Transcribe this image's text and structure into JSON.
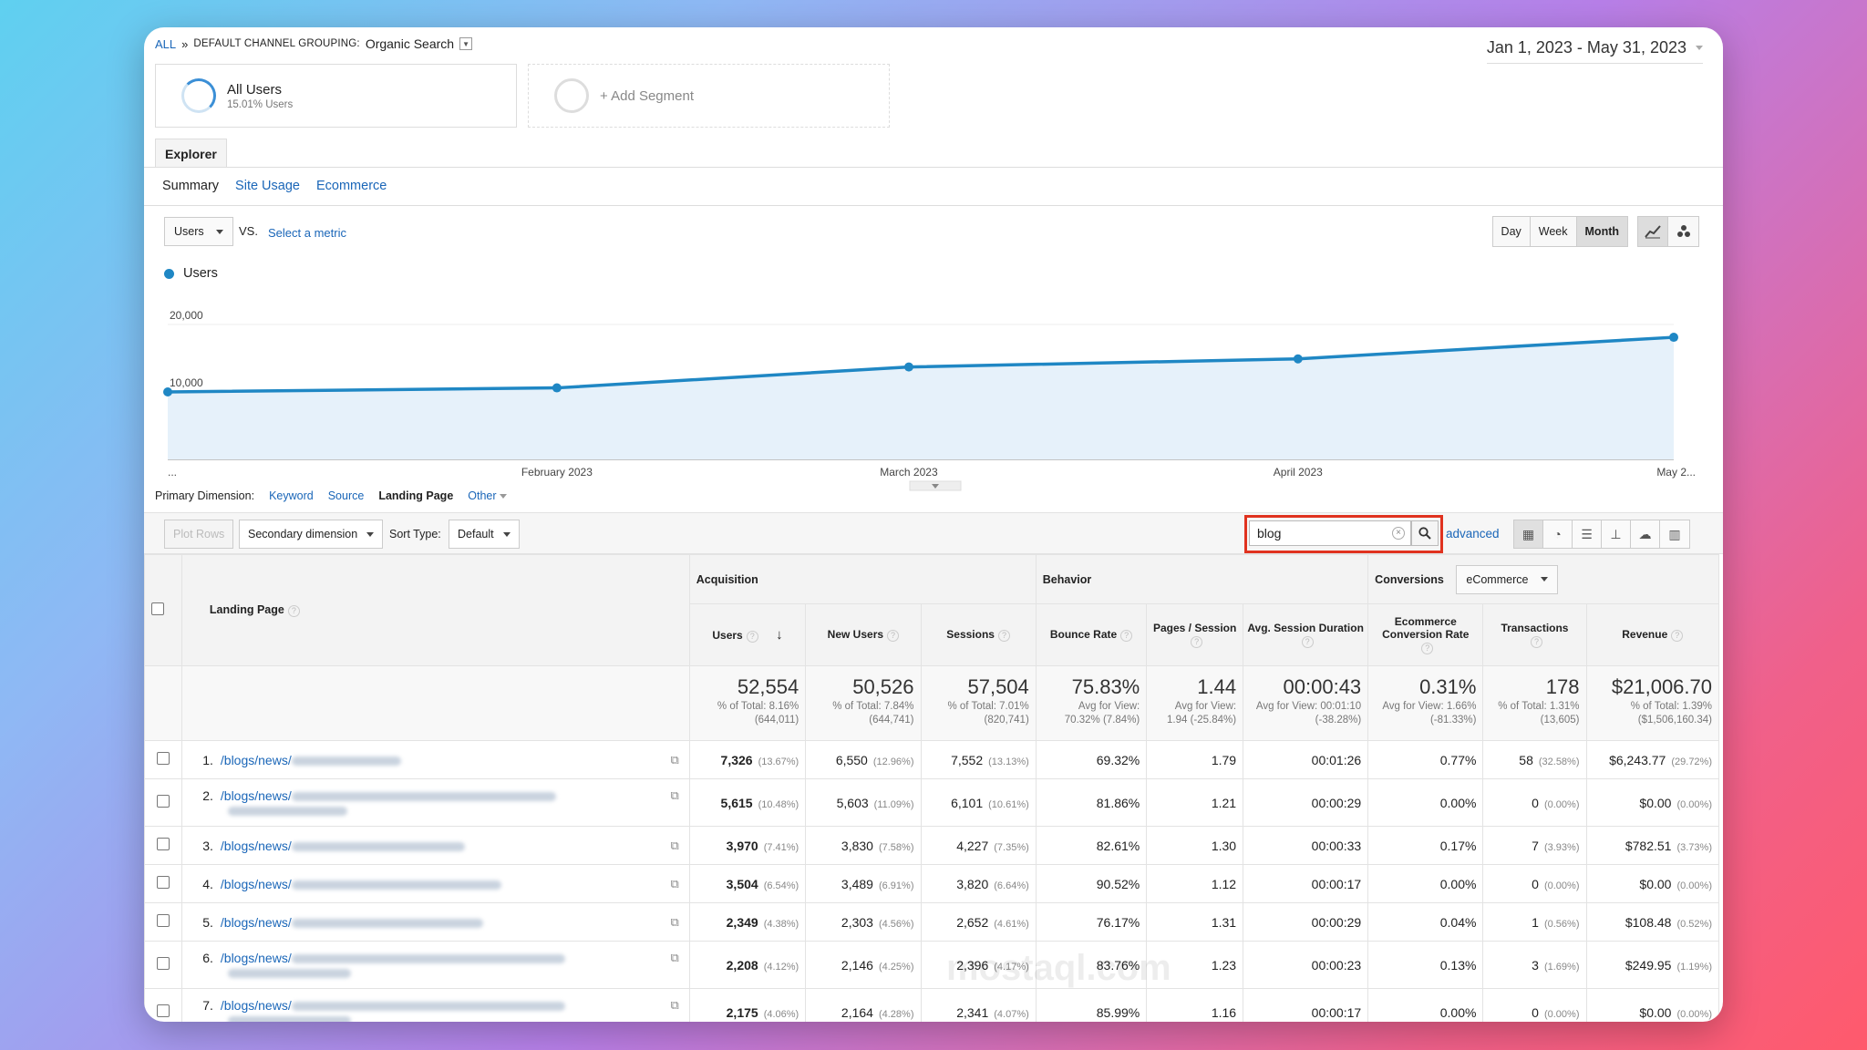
{
  "breadcrumb": {
    "all": "ALL",
    "sep": "»",
    "grouping_label": "DEFAULT CHANNEL GROUPING:",
    "grouping_value": "Organic Search"
  },
  "date_range": "Jan 1, 2023 - May 31, 2023",
  "segments": [
    {
      "name": "All Users",
      "sub": "15.01% Users"
    },
    {
      "name": "+ Add Segment"
    }
  ],
  "tabs": {
    "explorer": "Explorer",
    "sub": [
      "Summary",
      "Site Usage",
      "Ecommerce"
    ]
  },
  "metric": {
    "selected": "Users",
    "vs": "VS.",
    "select_metric": "Select a metric"
  },
  "period": [
    "Day",
    "Week",
    "Month"
  ],
  "chart_data": {
    "type": "line",
    "series": [
      {
        "name": "Users",
        "values": [
          10000,
          10600,
          13700,
          14900,
          18100
        ]
      }
    ],
    "x": [
      "...",
      "February 2023",
      "March 2023",
      "April 2023",
      "May 2..."
    ],
    "ylim": [
      0,
      20000
    ],
    "yticks": [
      "20,000",
      "10,000"
    ],
    "color": "#1f87c4"
  },
  "dimensions": {
    "label": "Primary Dimension:",
    "items": [
      "Keyword",
      "Source",
      "Landing Page",
      "Other"
    ],
    "current": "Landing Page"
  },
  "toolbar": {
    "plot_rows": "Plot Rows",
    "secondary": "Secondary dimension",
    "sort_label": "Sort Type:",
    "sort_value": "Default",
    "search_value": "blog",
    "advanced": "advanced"
  },
  "table": {
    "groups": {
      "acquisition": "Acquisition",
      "behavior": "Behavior",
      "conversions": "Conversions",
      "conversions_sel": "eCommerce"
    },
    "columns": [
      "Landing Page",
      "Users",
      "New Users",
      "Sessions",
      "Bounce Rate",
      "Pages / Session",
      "Avg. Session Duration",
      "Ecommerce Conversion Rate",
      "Transactions",
      "Revenue"
    ],
    "totals": [
      {
        "big": "52,554",
        "l1": "% of Total: 8.16%",
        "l2": "(644,011)"
      },
      {
        "big": "50,526",
        "l1": "% of Total: 7.84%",
        "l2": "(644,741)"
      },
      {
        "big": "57,504",
        "l1": "% of Total: 7.01%",
        "l2": "(820,741)"
      },
      {
        "big": "75.83%",
        "l1": "Avg for View:",
        "l2": "70.32% (7.84%)"
      },
      {
        "big": "1.44",
        "l1": "Avg for View:",
        "l2": "1.94 (-25.84%)"
      },
      {
        "big": "00:00:43",
        "l1": "Avg for View: 00:01:10",
        "l2": "(-38.28%)"
      },
      {
        "big": "0.31%",
        "l1": "Avg for View: 1.66%",
        "l2": "(-81.33%)"
      },
      {
        "big": "178",
        "l1": "% of Total: 1.31%",
        "l2": "(13,605)"
      },
      {
        "big": "$21,006.70",
        "l1": "% of Total: 1.39%",
        "l2": "($1,506,160.34)"
      }
    ],
    "rows": [
      {
        "n": "1.",
        "path": "/blogs/news/",
        "users": "7,326",
        "users_pct": "(13.67%)",
        "new": "6,550",
        "new_pct": "(12.96%)",
        "sessions": "7,552",
        "sessions_pct": "(13.13%)",
        "bounce": "69.32%",
        "pps": "1.79",
        "dur": "00:01:26",
        "ecr": "0.77%",
        "tx": "58",
        "tx_pct": "(32.58%)",
        "rev": "$6,243.77",
        "rev_pct": "(29.72%)"
      },
      {
        "n": "2.",
        "path": "/blogs/news/",
        "users": "5,615",
        "users_pct": "(10.48%)",
        "new": "5,603",
        "new_pct": "(11.09%)",
        "sessions": "6,101",
        "sessions_pct": "(10.61%)",
        "bounce": "81.86%",
        "pps": "1.21",
        "dur": "00:00:29",
        "ecr": "0.00%",
        "tx": "0",
        "tx_pct": "(0.00%)",
        "rev": "$0.00",
        "rev_pct": "(0.00%)"
      },
      {
        "n": "3.",
        "path": "/blogs/news/",
        "users": "3,970",
        "users_pct": "(7.41%)",
        "new": "3,830",
        "new_pct": "(7.58%)",
        "sessions": "4,227",
        "sessions_pct": "(7.35%)",
        "bounce": "82.61%",
        "pps": "1.30",
        "dur": "00:00:33",
        "ecr": "0.17%",
        "tx": "7",
        "tx_pct": "(3.93%)",
        "rev": "$782.51",
        "rev_pct": "(3.73%)"
      },
      {
        "n": "4.",
        "path": "/blogs/news/",
        "users": "3,504",
        "users_pct": "(6.54%)",
        "new": "3,489",
        "new_pct": "(6.91%)",
        "sessions": "3,820",
        "sessions_pct": "(6.64%)",
        "bounce": "90.52%",
        "pps": "1.12",
        "dur": "00:00:17",
        "ecr": "0.00%",
        "tx": "0",
        "tx_pct": "(0.00%)",
        "rev": "$0.00",
        "rev_pct": "(0.00%)"
      },
      {
        "n": "5.",
        "path": "/blogs/news/",
        "users": "2,349",
        "users_pct": "(4.38%)",
        "new": "2,303",
        "new_pct": "(4.56%)",
        "sessions": "2,652",
        "sessions_pct": "(4.61%)",
        "bounce": "76.17%",
        "pps": "1.31",
        "dur": "00:00:29",
        "ecr": "0.04%",
        "tx": "1",
        "tx_pct": "(0.56%)",
        "rev": "$108.48",
        "rev_pct": "(0.52%)"
      },
      {
        "n": "6.",
        "path": "/blogs/news/",
        "users": "2,208",
        "users_pct": "(4.12%)",
        "new": "2,146",
        "new_pct": "(4.25%)",
        "sessions": "2,396",
        "sessions_pct": "(4.17%)",
        "bounce": "83.76%",
        "pps": "1.23",
        "dur": "00:00:23",
        "ecr": "0.13%",
        "tx": "3",
        "tx_pct": "(1.69%)",
        "rev": "$249.95",
        "rev_pct": "(1.19%)"
      },
      {
        "n": "7.",
        "path": "/blogs/news/",
        "users": "2,175",
        "users_pct": "(4.06%)",
        "new": "2,164",
        "new_pct": "(4.28%)",
        "sessions": "2,341",
        "sessions_pct": "(4.07%)",
        "bounce": "85.99%",
        "pps": "1.16",
        "dur": "00:00:17",
        "ecr": "0.00%",
        "tx": "0",
        "tx_pct": "(0.00%)",
        "rev": "$0.00",
        "rev_pct": "(0.00%)"
      }
    ]
  },
  "watermark": "mostaql.com"
}
